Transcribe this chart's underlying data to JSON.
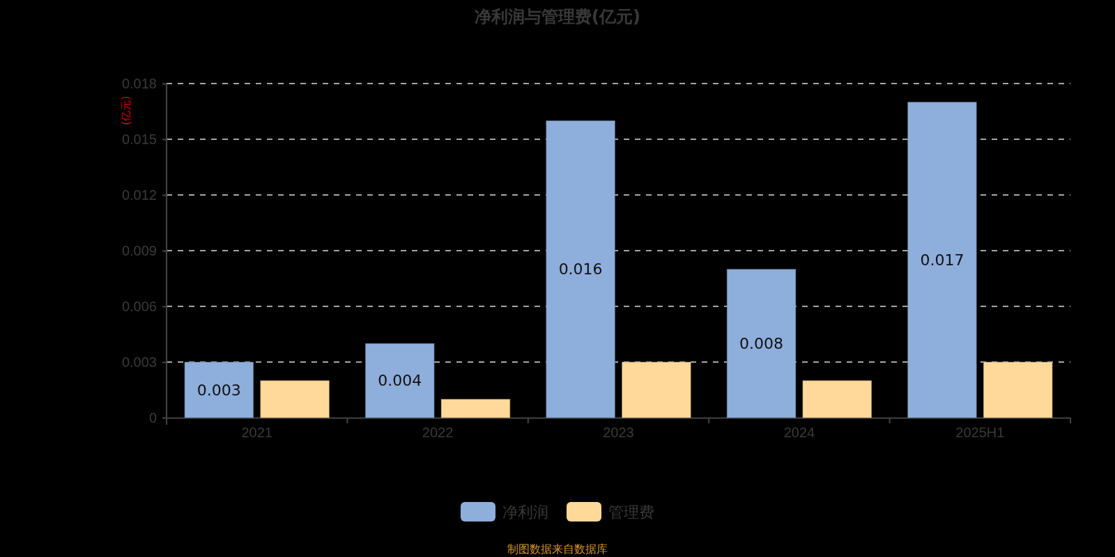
{
  "chart_data": {
    "type": "bar",
    "title": "净利润与管理费(亿元)",
    "ylabel": "(亿元)",
    "categories": [
      "2021",
      "2022",
      "2023",
      "2024",
      "2025H1"
    ],
    "series": [
      {
        "name": "净利润",
        "color": "#8eaedb",
        "values": [
          0.003,
          0.004,
          0.016,
          0.008,
          0.017
        ],
        "value_labels": [
          "0.003",
          "0.004",
          "0.016",
          "0.008",
          "0.017"
        ]
      },
      {
        "name": "管理费",
        "color": "#ffd99a",
        "values": [
          0.002,
          0.001,
          0.003,
          0.002,
          0.003
        ]
      }
    ],
    "ylim": [
      0,
      0.018
    ],
    "yticks": [
      0,
      0.003,
      0.006,
      0.009,
      0.012,
      0.015,
      0.018
    ],
    "grid": "y",
    "legend": "bottom",
    "annotations": [
      "制图数据来自数据库"
    ]
  }
}
